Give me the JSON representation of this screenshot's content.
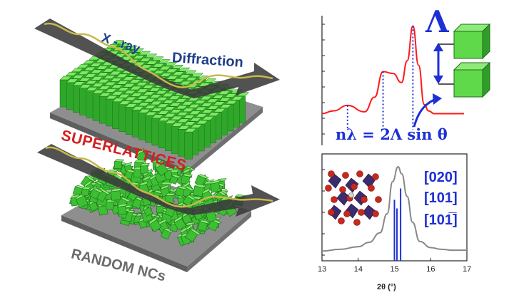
{
  "labels": {
    "xray": "X - ray",
    "diffraction": "Diffraction",
    "superlattices": "SUPERLATTICES",
    "random": "RANDOM NCs",
    "lambda_symbol": "Λ",
    "bragg_equation": "nλ = 2Λ sin θ",
    "peak_020": "[020]",
    "peak_101": "[101]",
    "peak_10m1": "[101̅]"
  },
  "colors": {
    "arrow": "#3d3d3d",
    "wave": "#c8b84a",
    "cube_green": "#3ec43a",
    "cube_dark": "#1f7a1c",
    "platform": "#9a9a9a",
    "red_curve": "#ff1a1a",
    "blue": "#1d2fd6",
    "gray_curve": "#888888"
  },
  "chart_data": [
    {
      "type": "line",
      "title": "",
      "xlabel": "",
      "ylabel": "",
      "series": [
        {
          "x": [
            0,
            0.08,
            0.18,
            0.3,
            0.37,
            0.43,
            0.5,
            0.56,
            0.6,
            0.64,
            0.68,
            0.72,
            0.75,
            0.79,
            0.83,
            0.88,
            0.92,
            1.0
          ],
          "values": [
            0.02,
            0.05,
            0.11,
            0.04,
            0.2,
            0.48,
            0.46,
            0.36,
            0.6,
            0.98,
            0.55,
            0.12,
            0.05,
            0.02,
            0.02,
            0.02,
            0.02,
            0.02
          ]
        }
      ],
      "annotations": [
        "nλ = 2Λ sin θ",
        "Λ"
      ]
    },
    {
      "type": "line",
      "xlabel": "2θ (°)",
      "xlim": [
        13,
        17
      ],
      "xticks": [
        13,
        14,
        15,
        16,
        17
      ],
      "series": [
        {
          "x": [
            13.0,
            13.5,
            14.0,
            14.3,
            14.6,
            14.8,
            14.95,
            15.1,
            15.2,
            15.35,
            15.5,
            15.7,
            16.0,
            16.3,
            16.6,
            17.0
          ],
          "values": [
            0.03,
            0.05,
            0.08,
            0.13,
            0.24,
            0.46,
            0.83,
            1.0,
            0.92,
            0.66,
            0.36,
            0.14,
            0.07,
            0.05,
            0.04,
            0.04
          ]
        }
      ],
      "reference_lines": [
        {
          "x": 15.0,
          "height": 0.62
        },
        {
          "x": 15.07,
          "height": 0.52
        },
        {
          "x": 15.17,
          "height": 0.75
        }
      ],
      "legend": [
        "[020]",
        "[101]",
        "[101̅]"
      ]
    }
  ]
}
